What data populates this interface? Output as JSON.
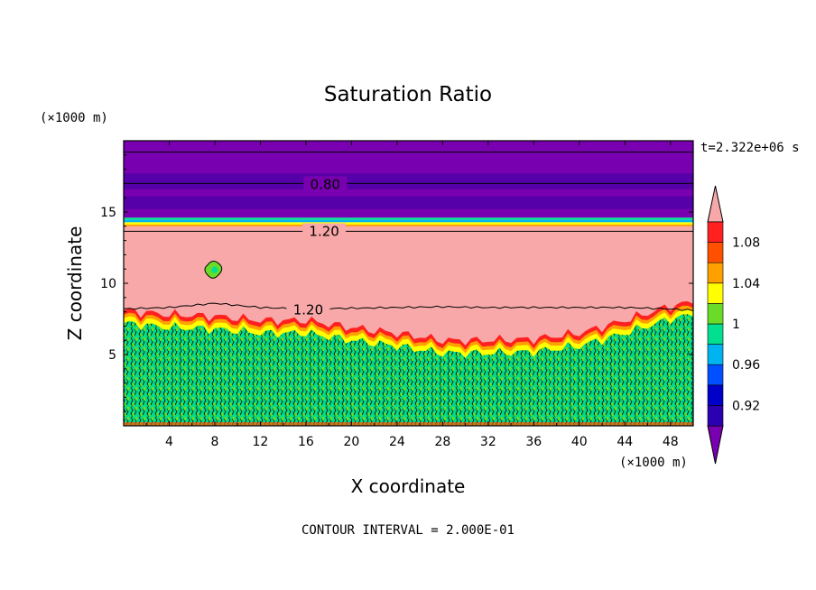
{
  "chart_data": {
    "type": "heatmap",
    "title": "Saturation Ratio",
    "xlabel": "X coordinate",
    "ylabel": "Z coordinate",
    "x_unit": "(×1000 m)",
    "y_unit": "(×1000 m)",
    "x_ticks": [
      "4",
      "8",
      "12",
      "16",
      "20",
      "24",
      "28",
      "32",
      "36",
      "40",
      "44",
      "48"
    ],
    "x_tick_values": [
      4,
      8,
      12,
      16,
      20,
      24,
      28,
      32,
      36,
      40,
      44,
      48
    ],
    "y_ticks": [
      "5",
      "10",
      "15"
    ],
    "y_tick_values": [
      5,
      10,
      15
    ],
    "xlim": [
      0,
      50
    ],
    "ylim": [
      0,
      20
    ],
    "time_label": "t=2.322e+06 s",
    "footer": "CONTOUR INTERVAL = 2.000E-01",
    "contour_labels": [
      {
        "text": "0.80",
        "x": 17.7,
        "y": 17.0
      },
      {
        "text": "1.20",
        "x": 17.6,
        "y": 13.7
      },
      {
        "text": "1.20",
        "x": 16.2,
        "y": 8.2
      }
    ],
    "colorbar": {
      "labels": [
        "1.08",
        "1.04",
        "1",
        "0.96",
        "0.92"
      ],
      "label_values": [
        1.08,
        1.04,
        1.0,
        0.96,
        0.92
      ],
      "levels": [
        0.9,
        0.92,
        0.94,
        0.96,
        0.98,
        1.0,
        1.02,
        1.04,
        1.06,
        1.08,
        1.1
      ],
      "colors": [
        "#5500a8",
        "#2a00b0",
        "#0000c8",
        "#0050ff",
        "#00b4f0",
        "#00e090",
        "#6adc28",
        "#ffff00",
        "#ffa000",
        "#ff5000",
        "#ff2020"
      ],
      "under_color": "#7800b0",
      "over_color": "#f8a8a8"
    },
    "field": {
      "upper_layer": {
        "value_range": [
          0.8,
          0.9
        ],
        "z_range": [
          14.6,
          20.0
        ]
      },
      "tropopause_band_z": [
        13.8,
        14.6
      ],
      "supersaturated_layer": {
        "value": "> 1.10",
        "z_top": 14.0
      },
      "cloud_top_contour_1_20_z": {
        "x": [
          0,
          4,
          8,
          12,
          16,
          20,
          24,
          28,
          32,
          36,
          40,
          44,
          48,
          50
        ],
        "z": [
          8.2,
          8.3,
          8.6,
          8.3,
          8.2,
          8.25,
          8.3,
          8.35,
          8.3,
          8.3,
          8.3,
          8.3,
          8.2,
          8.1
        ]
      },
      "boundary_layer_top_z": {
        "x": [
          0,
          4,
          8,
          12,
          16,
          20,
          24,
          28,
          32,
          36,
          40,
          44,
          48,
          50
        ],
        "z": [
          7.2,
          6.9,
          6.8,
          6.5,
          6.5,
          6.0,
          5.6,
          5.1,
          5.1,
          5.2,
          5.6,
          6.5,
          7.5,
          7.8
        ]
      },
      "boundary_layer_value_range": [
        0.96,
        1.02
      ]
    }
  }
}
